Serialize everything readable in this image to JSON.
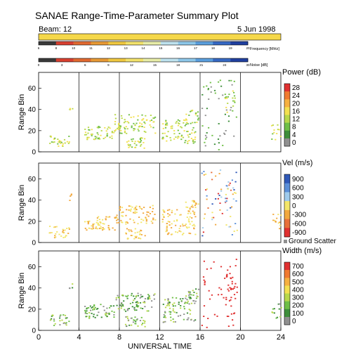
{
  "header": {
    "title": "SANAE Range-Time-Parameter Summary Plot",
    "beam_label": "Beam: 12",
    "date": "5 Jun 1998"
  },
  "freq_bar": {
    "label": "Frequency [MHz]",
    "ticks": [
      "6",
      "8",
      "10",
      "11",
      "12",
      "13",
      "14",
      "15",
      "16",
      "17",
      "18",
      "19",
      "20"
    ],
    "colors": [
      "#3a3a3a",
      "#d94030",
      "#e26a30",
      "#e89a35",
      "#f0c840",
      "#f3e36c",
      "#e8eda8",
      "#bfe3ef",
      "#8ec8ea",
      "#5b9fde",
      "#3669c4",
      "#2040a0"
    ]
  },
  "noise_bar": {
    "label": "Noise [dB]",
    "ticks": [
      "0",
      "3",
      "6",
      "9",
      "12",
      "15",
      "18",
      "21",
      "24",
      "30"
    ],
    "colors": [
      "#3a3a3a",
      "#d94030",
      "#e26a30",
      "#e89a35",
      "#f0c840",
      "#f3e36c",
      "#e8eda8",
      "#bfe3ef",
      "#8ec8ea",
      "#5b9fde",
      "#3669c4",
      "#2040a0"
    ]
  },
  "chart_data": [
    {
      "type": "scatter",
      "panel": "power",
      "ylabel": "Range Bin",
      "xlim": [
        0,
        24
      ],
      "ylim": [
        0,
        75
      ],
      "yticks": [
        0,
        20,
        40,
        60
      ],
      "colorbar": {
        "title": "Power (dB)",
        "labels": [
          "28",
          "24",
          "20",
          "16",
          "12",
          "8",
          "4",
          "0"
        ],
        "colors": [
          "#e03030",
          "#f07a30",
          "#f6b040",
          "#f3e050",
          "#b8d84a",
          "#6fbf46",
          "#3d8e3a",
          "#909090"
        ]
      }
    },
    {
      "type": "scatter",
      "panel": "velocity",
      "ylabel": "Range Bin",
      "xlim": [
        0,
        24
      ],
      "ylim": [
        0,
        75
      ],
      "yticks": [
        0,
        20,
        40,
        60
      ],
      "colorbar": {
        "title": "Vel (m/s)",
        "labels": [
          "900",
          "600",
          "300",
          "0",
          "-300",
          "-600",
          "-900"
        ],
        "colors": [
          "#2e58b8",
          "#5b8fd8",
          "#9fcbec",
          "#f3e66a",
          "#f2a83e",
          "#e8703a",
          "#e03030"
        ]
      },
      "ground_scatter_label": "Ground Scatter"
    },
    {
      "type": "scatter",
      "panel": "width",
      "ylabel": "Range Bin",
      "xlabel": "UNIVERSAL TIME",
      "xlim": [
        0,
        24
      ],
      "xticks": [
        0,
        4,
        8,
        12,
        16,
        20,
        24
      ],
      "ylim": [
        0,
        75
      ],
      "yticks": [
        0,
        20,
        40,
        60
      ],
      "colorbar": {
        "title": "Width (m/s)",
        "labels": [
          "700",
          "600",
          "500",
          "400",
          "300",
          "200",
          "100",
          "0"
        ],
        "colors": [
          "#e03030",
          "#f07a30",
          "#f6b040",
          "#f3e050",
          "#b8d84a",
          "#6fbf46",
          "#3d8e3a",
          "#909090"
        ]
      }
    }
  ]
}
